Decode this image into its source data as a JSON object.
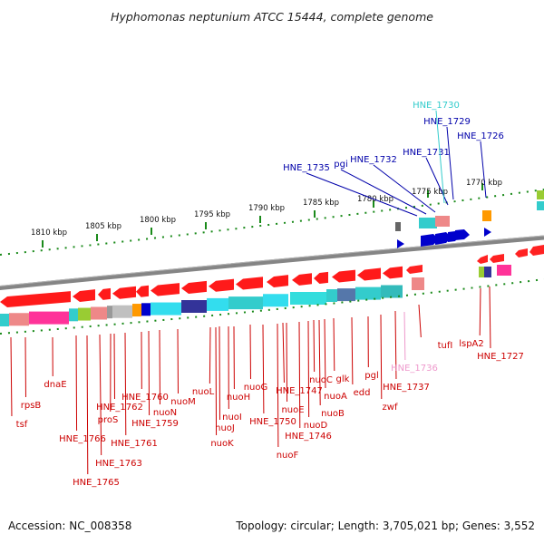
{
  "title": "Hyphomonas neptunium ATCC 15444, complete genome",
  "footer": {
    "accession": "Accession: NC_008358",
    "summary": "Topology: circular; Length: 3,705,021 bp; Genes: 3,552"
  },
  "colors": {
    "backbone": "#808080",
    "tick": "#1a8a1a",
    "forward_label": "#0000aa",
    "reverse_label": "#cc0000",
    "highlight_cyan": "#33cccc",
    "highlight_pink": "#ee99cc"
  },
  "scale": {
    "ticks": [
      {
        "label": "1810 kbp"
      },
      {
        "label": "1805 kbp"
      },
      {
        "label": "1800 kbp"
      },
      {
        "label": "1795 kbp"
      },
      {
        "label": "1790 kbp"
      },
      {
        "label": "1785 kbp"
      },
      {
        "label": "1780 kbp"
      },
      {
        "label": "1775 kbp"
      },
      {
        "label": "1770 kbp"
      }
    ]
  },
  "forward_genes": [
    {
      "label": "HNE_1735",
      "color": "#0000aa"
    },
    {
      "label": "pgi",
      "color": "#0000aa"
    },
    {
      "label": "HNE_1732",
      "color": "#0000aa"
    },
    {
      "label": "HNE_1731",
      "color": "#0000aa"
    },
    {
      "label": "HNE_1730",
      "color": "#33cccc"
    },
    {
      "label": "HNE_1729",
      "color": "#0000aa"
    },
    {
      "label": "HNE_1726",
      "color": "#0000aa"
    }
  ],
  "reverse_genes": [
    {
      "label": "tsf"
    },
    {
      "label": "rpsB"
    },
    {
      "label": "dnaE"
    },
    {
      "label": "HNE_1766"
    },
    {
      "label": "HNE_1765"
    },
    {
      "label": "HNE_1763"
    },
    {
      "label": "proS"
    },
    {
      "label": "HNE_1762"
    },
    {
      "label": "HNE_1761"
    },
    {
      "label": "HNE_1760"
    },
    {
      "label": "HNE_1759"
    },
    {
      "label": "nuoN"
    },
    {
      "label": "nuoM"
    },
    {
      "label": "nuoL"
    },
    {
      "label": "nuoK"
    },
    {
      "label": "nuoJ"
    },
    {
      "label": "nuoI"
    },
    {
      "label": "nuoH"
    },
    {
      "label": "nuoG"
    },
    {
      "label": "HNE_1750"
    },
    {
      "label": "nuoF"
    },
    {
      "label": "nuoE"
    },
    {
      "label": "HNE_1747"
    },
    {
      "label": "HNE_1746"
    },
    {
      "label": "nuoD"
    },
    {
      "label": "nuoC"
    },
    {
      "label": "nuoB"
    },
    {
      "label": "nuoA"
    },
    {
      "label": "glk"
    },
    {
      "label": "edd"
    },
    {
      "label": "pgl"
    },
    {
      "label": "zwf"
    },
    {
      "label": "HNE_1737"
    },
    {
      "label": "HNE_1736"
    },
    {
      "label": "tufI"
    },
    {
      "label": "lspA2"
    },
    {
      "label": "HNE_1727"
    }
  ]
}
